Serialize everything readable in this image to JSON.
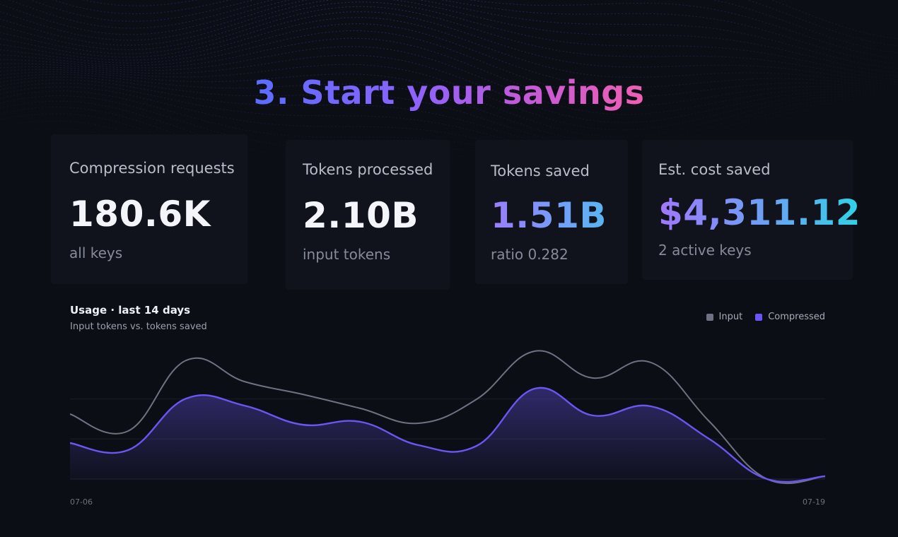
{
  "header": {
    "title": "3. Start your savings"
  },
  "stats": [
    {
      "label": "Compression requests",
      "value": "180.6K",
      "sub": "all keys"
    },
    {
      "label": "Tokens processed",
      "value": "2.10B",
      "sub": "input tokens"
    },
    {
      "label": "Tokens saved",
      "value": "1.51B",
      "sub": "ratio 0.282"
    },
    {
      "label": "Est. cost saved",
      "value": "$4,311.12",
      "sub": "2 active keys"
    }
  ],
  "colors": {
    "background": "#0c0e15",
    "card": "#10131b",
    "input_series": "#6e7282",
    "compressed_series": "#6a56f2"
  },
  "chart_data": {
    "type": "area",
    "title": "Usage · last 14 days",
    "subtitle": "Input tokens vs. tokens saved",
    "x_tick_labels": [
      "07-06",
      "07-19"
    ],
    "x": [
      "07-06",
      "07-07",
      "07-08",
      "07-09",
      "07-10",
      "07-11",
      "07-12",
      "07-13",
      "07-14",
      "07-15",
      "07-16",
      "07-17",
      "07-18",
      "07-19"
    ],
    "ylim": [
      0,
      180
    ],
    "grid": true,
    "legend_position": "top-right",
    "series": [
      {
        "name": "Input",
        "color": "#6e7282",
        "values": [
          92,
          68,
          168,
          138,
          120,
          100,
          79,
          113,
          181,
          143,
          165,
          82,
          0,
          4
        ]
      },
      {
        "name": "Compressed",
        "color": "#6a56f2",
        "values": [
          51,
          41,
          114,
          104,
          77,
          81,
          48,
          47,
          128,
          90,
          103,
          57,
          0,
          4
        ]
      }
    ]
  }
}
